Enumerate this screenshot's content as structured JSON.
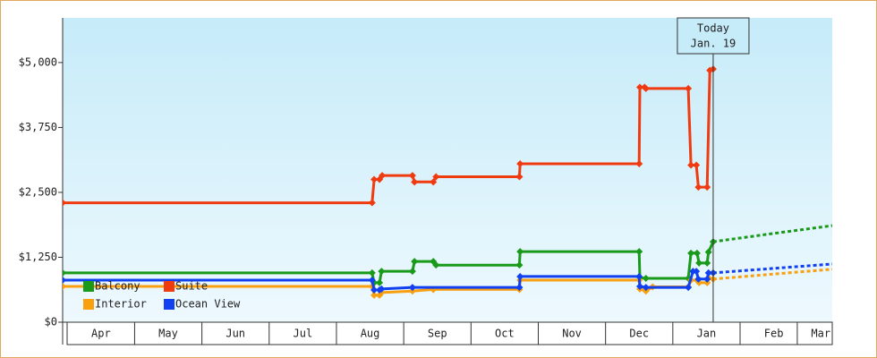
{
  "chart_data": {
    "type": "line",
    "ylim": [
      0,
      5860
    ],
    "yticks": [
      {
        "value": 0,
        "label": "$0"
      },
      {
        "value": 1250,
        "label": "$1,250"
      },
      {
        "value": 2500,
        "label": "$2,500"
      },
      {
        "value": 3750,
        "label": "$3,750"
      },
      {
        "value": 5000,
        "label": "$5,000"
      }
    ],
    "xlim": [
      -0.07,
      11.37
    ],
    "xticks": [
      {
        "value": 0.5,
        "label": "Apr"
      },
      {
        "value": 1.5,
        "label": "May"
      },
      {
        "value": 2.5,
        "label": "Jun"
      },
      {
        "value": 3.5,
        "label": "Jul"
      },
      {
        "value": 4.5,
        "label": "Aug"
      },
      {
        "value": 5.5,
        "label": "Sep"
      },
      {
        "value": 6.5,
        "label": "Oct"
      },
      {
        "value": 7.5,
        "label": "Nov"
      },
      {
        "value": 8.5,
        "label": "Dec"
      },
      {
        "value": 9.5,
        "label": "Jan"
      },
      {
        "value": 10.5,
        "label": "Feb"
      },
      {
        "value": 11.2,
        "label": "Mar"
      }
    ],
    "today": {
      "x": 9.6,
      "label": [
        "Today",
        "Jan. 19"
      ]
    },
    "series": [
      {
        "name": "Balcony",
        "color": "#1a9a1a",
        "x": [
          -0.07,
          4.53,
          4.56,
          4.64,
          4.67,
          5.13,
          5.16,
          5.44,
          5.48,
          6.72,
          6.73,
          8.5,
          8.51,
          8.6,
          9.23,
          9.27,
          9.36,
          9.39,
          9.51,
          9.53,
          9.6,
          10.44,
          11.37
        ],
        "values": [
          950,
          950,
          760,
          760,
          980,
          980,
          1170,
          1170,
          1100,
          1100,
          1360,
          1360,
          860,
          845,
          845,
          1330,
          1330,
          1140,
          1140,
          1350,
          1550,
          1700,
          1860
        ]
      },
      {
        "name": "Suite",
        "color": "#f03a10",
        "x": [
          -0.07,
          4.53,
          4.56,
          4.64,
          4.68,
          5.13,
          5.16,
          5.44,
          5.48,
          6.72,
          6.73,
          8.5,
          8.51,
          8.58,
          8.6,
          9.23,
          9.27,
          9.35,
          9.38,
          9.51,
          9.55,
          9.6
        ],
        "values": [
          2300,
          2300,
          2750,
          2750,
          2825,
          2825,
          2700,
          2700,
          2800,
          2800,
          3050,
          3050,
          4525,
          4525,
          4500,
          4500,
          3025,
          3025,
          2600,
          2600,
          4850,
          4875
        ]
      },
      {
        "name": "Interior",
        "color": "#f8a010",
        "x": [
          -0.07,
          4.53,
          4.56,
          4.64,
          4.67,
          5.13,
          5.44,
          6.72,
          6.73,
          8.5,
          8.51,
          8.6,
          8.7,
          9.23,
          9.27,
          9.36,
          9.39,
          9.51,
          9.53,
          9.6,
          11.37
        ],
        "values": [
          690,
          690,
          520,
          520,
          570,
          600,
          630,
          630,
          810,
          810,
          640,
          600,
          680,
          680,
          810,
          810,
          760,
          760,
          850,
          830,
          1020
        ]
      },
      {
        "name": "Ocean View",
        "color": "#1040f0",
        "x": [
          -0.07,
          4.53,
          4.56,
          4.64,
          4.67,
          5.13,
          6.72,
          6.73,
          8.5,
          8.51,
          8.6,
          9.23,
          9.3,
          9.35,
          9.38,
          9.51,
          9.53,
          9.6,
          11.37
        ],
        "values": [
          810,
          810,
          620,
          620,
          640,
          670,
          670,
          880,
          880,
          690,
          670,
          670,
          980,
          980,
          830,
          830,
          950,
          950,
          1120
        ]
      }
    ]
  }
}
